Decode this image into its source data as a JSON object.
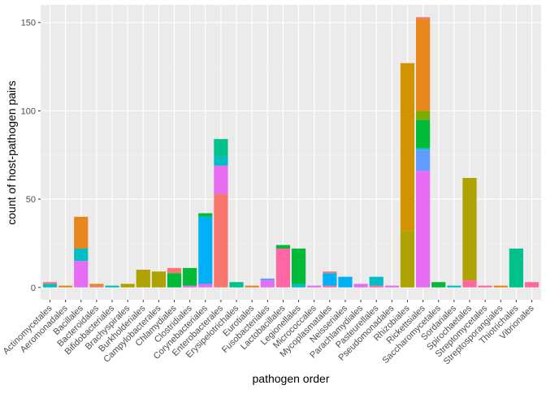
{
  "chart_data": {
    "type": "bar",
    "stacked": true,
    "xlabel": "pathogen order",
    "ylabel": "count of host-pathogen pairs",
    "ylim": [
      -7,
      160
    ],
    "yticks": [
      0,
      50,
      100,
      150
    ],
    "grid": true,
    "legend": "none",
    "categories": [
      "Actinomycetales",
      "Aeromonadales",
      "Bacillales",
      "Bacteroidales",
      "Bifidobacteriales",
      "Brachyspirales",
      "Burkholderiales",
      "Campylobacterales",
      "Chlamydiales",
      "Clostridiales",
      "Corynebacteriales",
      "Enterobacterales",
      "Erysipelotrichales",
      "Eurotiales",
      "Fusobacteriales",
      "Lactobacillales",
      "Legionellales",
      "Micrococcales",
      "Mycoplasmatales",
      "Neisseriales",
      "Parachlamydiales",
      "Pasteurellales",
      "Pseudomonadales",
      "Rhizobiales",
      "Rickettsiales",
      "Saccharomycetales",
      "Sordariales",
      "Spirochaetales",
      "Streptomycetales",
      "Streptosporangiales",
      "Thiotrichales",
      "Vibrionales"
    ],
    "bars": [
      [
        {
          "value": 2,
          "color": "#00BFC4"
        },
        {
          "value": 1,
          "color": "#F8766D"
        }
      ],
      [
        {
          "value": 1,
          "color": "#E7861B"
        }
      ],
      [
        {
          "value": 15,
          "color": "#E76BF3"
        },
        {
          "value": 7,
          "color": "#00BFC4"
        },
        {
          "value": 18,
          "color": "#E7861B"
        }
      ],
      [
        {
          "value": 1,
          "color": "#F8766D"
        },
        {
          "value": 1,
          "color": "#E7861B"
        }
      ],
      [
        {
          "value": 1,
          "color": "#00BFC4"
        }
      ],
      [
        {
          "value": 2,
          "color": "#AFA100"
        }
      ],
      [
        {
          "value": 10,
          "color": "#AFA100"
        }
      ],
      [
        {
          "value": 9,
          "color": "#AFA100"
        }
      ],
      [
        {
          "value": 8,
          "color": "#00BA38"
        },
        {
          "value": 3,
          "color": "#F8766D"
        }
      ],
      [
        {
          "value": 1,
          "color": "#E76BF3"
        },
        {
          "value": 10,
          "color": "#00BA38"
        }
      ],
      [
        {
          "value": 2,
          "color": "#E76BF3"
        },
        {
          "value": 38,
          "color": "#00B0F6"
        },
        {
          "value": 2,
          "color": "#00BA38"
        }
      ],
      [
        {
          "value": 53,
          "color": "#F8766D"
        },
        {
          "value": 16,
          "color": "#E76BF3"
        },
        {
          "value": 5,
          "color": "#00BFC4"
        },
        {
          "value": 10,
          "color": "#00C08B"
        }
      ],
      [
        {
          "value": 3,
          "color": "#00C08B"
        }
      ],
      [
        {
          "value": 1,
          "color": "#E7861B"
        }
      ],
      [
        {
          "value": 4,
          "color": "#E76BF3"
        },
        {
          "value": 1,
          "color": "#619CFF"
        }
      ],
      [
        {
          "value": 22,
          "color": "#FF67A4"
        },
        {
          "value": 2,
          "color": "#00BA38"
        }
      ],
      [
        {
          "value": 2,
          "color": "#00BFC4"
        },
        {
          "value": 20,
          "color": "#00BA38"
        }
      ],
      [
        {
          "value": 1,
          "color": "#E76BF3"
        }
      ],
      [
        {
          "value": 1,
          "color": "#FF67A4"
        },
        {
          "value": 7,
          "color": "#00B0F6"
        },
        {
          "value": 1,
          "color": "#F8766D"
        }
      ],
      [
        {
          "value": 6,
          "color": "#00B0F6"
        }
      ],
      [
        {
          "value": 2,
          "color": "#E76BF3"
        }
      ],
      [
        {
          "value": 1,
          "color": "#FF67A4"
        },
        {
          "value": 5,
          "color": "#00BFC4"
        }
      ],
      [
        {
          "value": 1,
          "color": "#E76BF3"
        }
      ],
      [
        {
          "value": 32,
          "color": "#AFA100"
        },
        {
          "value": 95,
          "color": "#D39200"
        }
      ],
      [
        {
          "value": 66,
          "color": "#E76BF3"
        },
        {
          "value": 12,
          "color": "#619CFF"
        },
        {
          "value": 1,
          "color": "#00BFC4"
        },
        {
          "value": 16,
          "color": "#00BA38"
        },
        {
          "value": 5,
          "color": "#7CAE00"
        },
        {
          "value": 52,
          "color": "#E7861B"
        },
        {
          "value": 1,
          "color": "#F8766D"
        }
      ],
      [
        {
          "value": 3,
          "color": "#00BA38"
        }
      ],
      [
        {
          "value": 1,
          "color": "#00BFC4"
        }
      ],
      [
        {
          "value": 4,
          "color": "#FF67A4"
        },
        {
          "value": 58,
          "color": "#AFA100"
        }
      ],
      [
        {
          "value": 1,
          "color": "#FF67A4"
        }
      ],
      [
        {
          "value": 1,
          "color": "#E7861B"
        }
      ],
      [
        {
          "value": 22,
          "color": "#00C08B"
        }
      ],
      [
        {
          "value": 3,
          "color": "#FF67A4"
        }
      ]
    ]
  }
}
